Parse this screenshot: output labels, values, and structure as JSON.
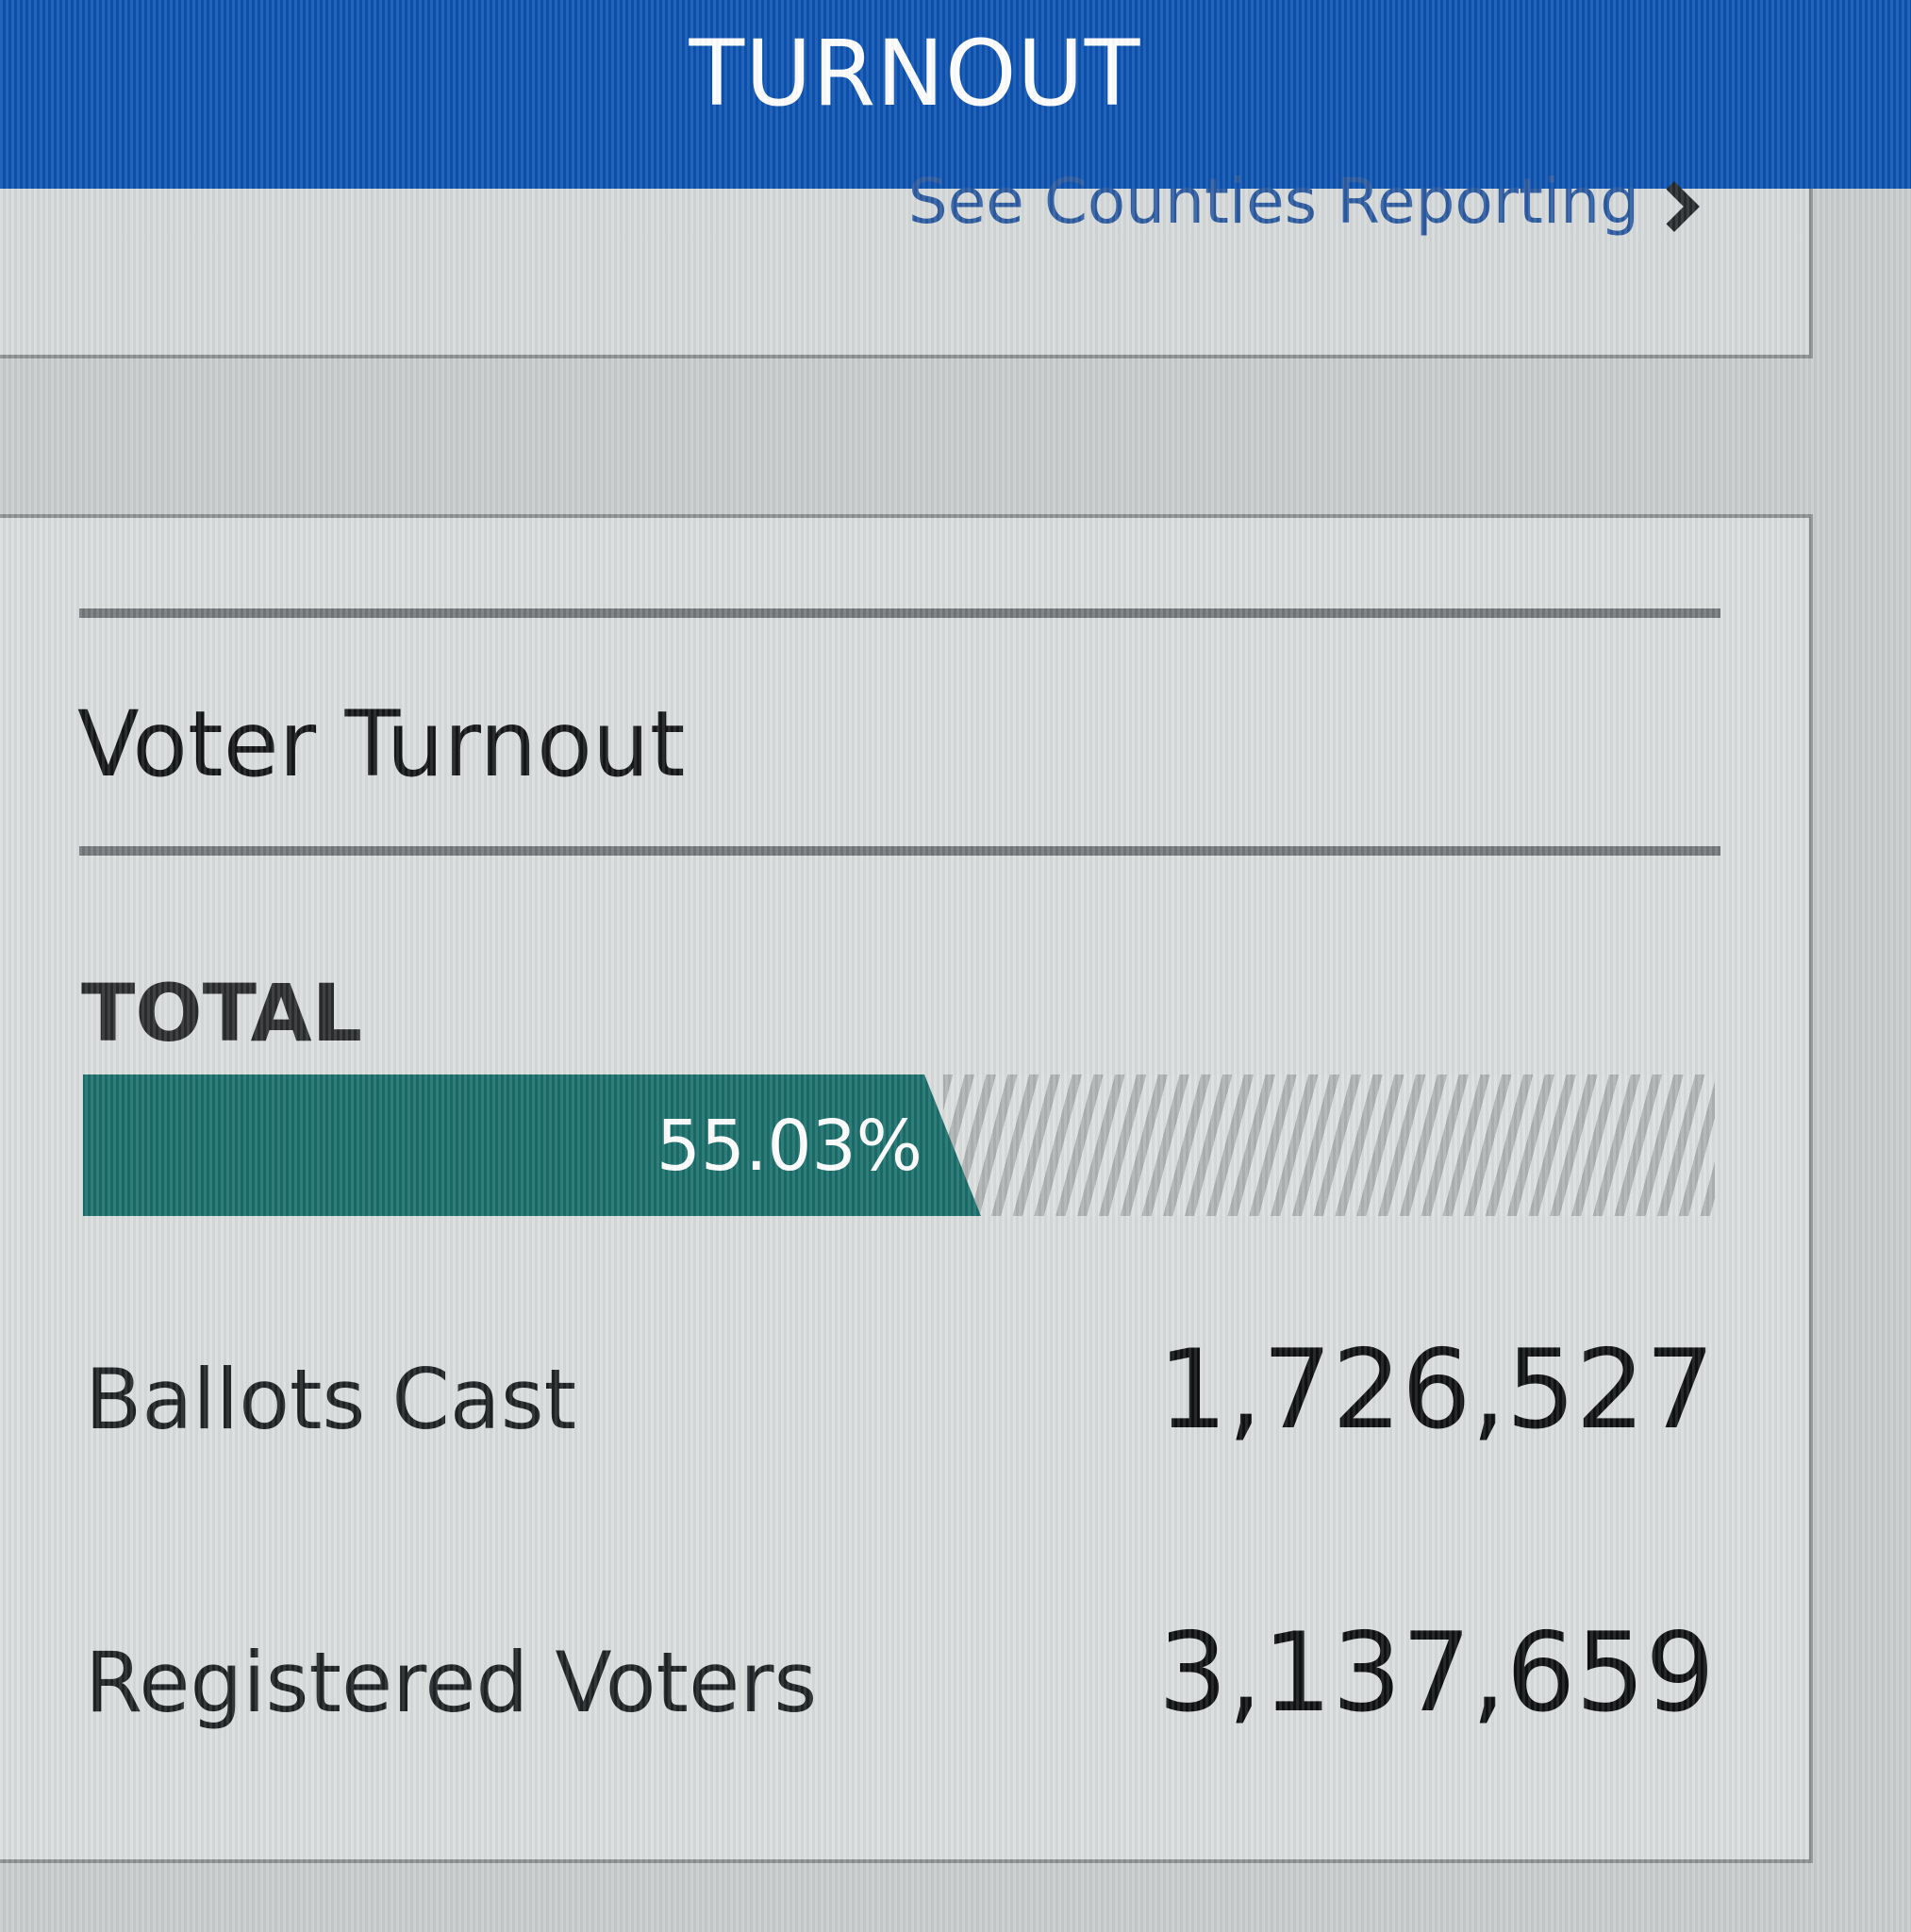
{
  "header": {
    "title": "TURNOUT"
  },
  "reporting": {
    "link_label": "See Counties Reporting"
  },
  "turnout": {
    "section_title": "Voter Turnout",
    "total_label": "TOTAL",
    "percent_label": "55.03%",
    "percent_value": 55.03,
    "ballots_cast_label": "Ballots Cast",
    "ballots_cast_value": "1,726,527",
    "registered_voters_label": "Registered Voters",
    "registered_voters_value": "3,137,659"
  },
  "colors": {
    "header_blue": "#0b52b0",
    "bar_teal": "#1a6e6b",
    "link_blue": "#2c5aa0"
  }
}
